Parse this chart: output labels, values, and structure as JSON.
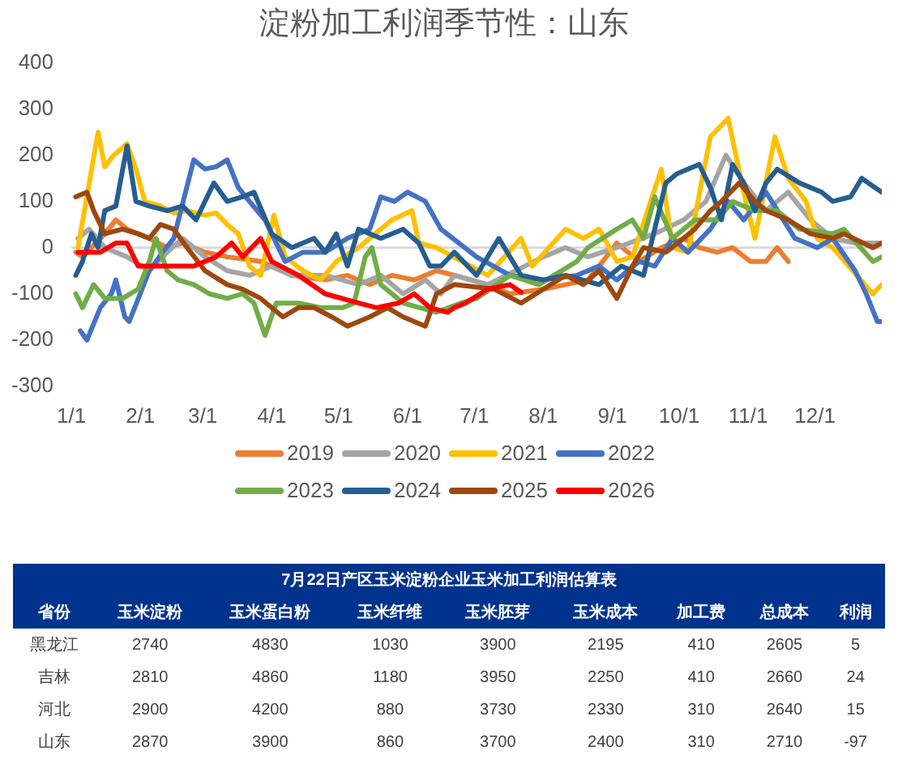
{
  "chart_data": [
    {
      "type": "line",
      "title": "淀粉加工利润季节性：山东",
      "xlim": [
        "--01-01",
        "--12-31"
      ],
      "xticks": [
        {
          "value": "--01-01",
          "label": "1/1"
        },
        {
          "value": "--02-01",
          "label": "2/1"
        },
        {
          "value": "--03-01",
          "label": "3/1"
        },
        {
          "value": "--04-01",
          "label": "4/1"
        },
        {
          "value": "--05-01",
          "label": "5/1"
        },
        {
          "value": "--06-01",
          "label": "6/1"
        },
        {
          "value": "--07-01",
          "label": "7/1"
        },
        {
          "value": "--08-01",
          "label": "8/1"
        },
        {
          "value": "--09-01",
          "label": "9/1"
        },
        {
          "value": "--10-01",
          "label": "10/1"
        },
        {
          "value": "--11-01",
          "label": "11/1"
        },
        {
          "value": "--12-01",
          "label": "12/1"
        }
      ],
      "ylim": [
        -300,
        400
      ],
      "yticks": [
        -300,
        -200,
        -100,
        0,
        100,
        200,
        300,
        400
      ],
      "legend": "bottom",
      "ref_lines": [
        {
          "axis": "y",
          "value": 0,
          "label": null,
          "color": "#d9d9d9"
        }
      ],
      "series": [
        {
          "name": "2019",
          "color": "#ed7d31",
          "x": [
            "--01-03",
            "--01-06",
            "--01-16",
            "--01-21",
            "--01-26",
            "--02-05",
            "--02-13",
            "--02-20",
            "--03-02",
            "--03-12",
            "--03-27",
            "--04-10",
            "--04-25",
            "--05-05",
            "--05-15",
            "--05-25",
            "--06-04",
            "--06-14",
            "--06-22",
            "--07-07",
            "--07-17",
            "--08-01",
            "--08-11",
            "--08-21",
            "--08-26",
            "--09-03",
            "--09-13",
            "--09-23",
            "--10-03",
            "--10-10",
            "--10-18",
            "--10-25",
            "--11-02",
            "--11-09",
            "--11-14",
            "--11-19"
          ],
          "values": [
            -10,
            -20,
            30,
            60,
            40,
            20,
            0,
            10,
            -10,
            -20,
            -30,
            -60,
            -70,
            -60,
            -80,
            -60,
            -70,
            -50,
            -60,
            -80,
            -100,
            -90,
            -80,
            -70,
            -40,
            10,
            -30,
            0,
            20,
            0,
            -10,
            0,
            -30,
            -30,
            0,
            -30
          ]
        },
        {
          "name": "2020",
          "color": "#a5a5a5",
          "x": [
            "--01-04",
            "--01-09",
            "--01-16",
            "--01-26",
            "--02-05",
            "--02-13",
            "--02-20",
            "--03-02",
            "--03-12",
            "--03-22",
            "--04-01",
            "--04-10",
            "--04-25",
            "--05-10",
            "--05-20",
            "--05-30",
            "--06-09",
            "--06-16",
            "--06-22",
            "--07-07",
            "--08-01",
            "--08-11",
            "--08-21",
            "--09-03",
            "--09-20",
            "--10-03",
            "--10-13",
            "--10-22",
            "--10-30",
            "--11-09",
            "--11-19",
            "--11-29",
            "--12-09",
            "--12-19",
            "--12-31"
          ],
          "values": [
            20,
            40,
            0,
            -20,
            -50,
            -10,
            20,
            -20,
            -50,
            -60,
            -40,
            -60,
            -60,
            -80,
            -60,
            -100,
            -70,
            -100,
            -60,
            -80,
            -20,
            0,
            -20,
            0,
            30,
            60,
            100,
            200,
            140,
            80,
            120,
            60,
            20,
            10,
            10
          ]
        },
        {
          "name": "2021",
          "color": "#ffc000",
          "x": [
            "--01-04",
            "--01-13",
            "--01-16",
            "--01-20",
            "--01-26",
            "--01-30",
            "--02-03",
            "--02-10",
            "--02-16",
            "--02-22",
            "--03-02",
            "--03-07",
            "--03-12",
            "--03-17",
            "--03-22",
            "--03-27",
            "--04-02",
            "--04-07",
            "--04-15",
            "--04-23",
            "--04-30",
            "--05-10",
            "--05-20",
            "--05-25",
            "--06-03",
            "--06-06",
            "--06-14",
            "--07-07",
            "--07-22",
            "--07-27",
            "--08-11",
            "--08-19",
            "--08-26",
            "--09-03",
            "--09-10",
            "--09-23",
            "--09-28",
            "--10-05",
            "--10-15",
            "--10-23",
            "--10-30",
            "--11-04",
            "--11-13",
            "--11-19",
            "--11-27",
            "--12-02",
            "--12-09",
            "--12-27",
            "--12-31"
          ],
          "values": [
            0,
            250,
            175,
            200,
            225,
            170,
            100,
            90,
            75,
            80,
            70,
            75,
            50,
            30,
            -40,
            -60,
            70,
            -20,
            -50,
            -70,
            -30,
            0,
            40,
            60,
            80,
            10,
            0,
            -60,
            20,
            -40,
            40,
            20,
            40,
            -30,
            -20,
            170,
            0,
            -10,
            240,
            280,
            120,
            20,
            240,
            150,
            100,
            20,
            0,
            -100,
            -80
          ]
        },
        {
          "name": "2022",
          "color": "#4472c4",
          "x": [
            "--01-05",
            "--01-08",
            "--01-14",
            "--01-19",
            "--01-21",
            "--01-25",
            "--01-27",
            "--02-05",
            "--02-11",
            "--02-16",
            "--02-25",
            "--03-02",
            "--03-07",
            "--03-12",
            "--03-17",
            "--03-22",
            "--03-29",
            "--04-07",
            "--04-15",
            "--04-25",
            "--05-05",
            "--05-15",
            "--05-20",
            "--05-26",
            "--06-01",
            "--06-09",
            "--06-16",
            "--07-02",
            "--07-17",
            "--08-01",
            "--08-16",
            "--08-26",
            "--09-03",
            "--09-13",
            "--09-20",
            "--09-28",
            "--10-05",
            "--10-15",
            "--10-23",
            "--10-30",
            "--11-09",
            "--11-22",
            "--12-02",
            "--12-09",
            "--12-19",
            "--12-24",
            "--12-29",
            "--12-31"
          ],
          "values": [
            -180,
            -200,
            -130,
            -100,
            -70,
            -150,
            -160,
            -50,
            -10,
            20,
            190,
            170,
            175,
            190,
            130,
            100,
            60,
            -30,
            -10,
            -10,
            20,
            40,
            110,
            100,
            120,
            100,
            40,
            -20,
            -60,
            -70,
            -60,
            -40,
            -70,
            -30,
            -40,
            20,
            -10,
            40,
            100,
            60,
            120,
            20,
            0,
            20,
            -50,
            -100,
            -160,
            -160
          ]
        },
        {
          "name": "2023",
          "color": "#70ad47",
          "x": [
            "--01-03",
            "--01-06",
            "--01-11",
            "--01-16",
            "--01-24",
            "--01-31",
            "--02-05",
            "--02-08",
            "--02-13",
            "--02-18",
            "--02-25",
            "--03-04",
            "--03-12",
            "--03-19",
            "--03-24",
            "--03-29",
            "--04-03",
            "--04-13",
            "--04-23",
            "--05-03",
            "--05-08",
            "--05-13",
            "--05-16",
            "--05-20",
            "--05-30",
            "--06-14",
            "--06-25",
            "--07-02",
            "--07-17",
            "--07-30",
            "--08-16",
            "--08-21",
            "--09-03",
            "--09-10",
            "--09-15",
            "--09-20",
            "--09-28",
            "--10-08",
            "--10-18",
            "--10-25",
            "--11-04",
            "--11-14",
            "--11-24",
            "--12-09",
            "--12-14",
            "--12-27",
            "--12-31"
          ],
          "values": [
            -100,
            -130,
            -80,
            -110,
            -110,
            -90,
            -30,
            20,
            -50,
            -70,
            -80,
            -100,
            -110,
            -100,
            -120,
            -190,
            -120,
            -120,
            -130,
            -130,
            -120,
            -20,
            0,
            -80,
            -120,
            -140,
            -120,
            -110,
            -60,
            -80,
            -30,
            0,
            40,
            60,
            20,
            110,
            20,
            60,
            60,
            100,
            80,
            80,
            40,
            30,
            40,
            -30,
            -20
          ]
        },
        {
          "name": "2024",
          "color": "#255e91",
          "x": [
            "--01-03",
            "--01-06",
            "--01-10",
            "--01-13",
            "--01-16",
            "--01-21",
            "--01-26",
            "--01-30",
            "--02-05",
            "--02-13",
            "--02-20",
            "--02-26",
            "--03-06",
            "--03-12",
            "--03-19",
            "--03-24",
            "--04-01",
            "--04-10",
            "--04-20",
            "--04-25",
            "--04-30",
            "--05-05",
            "--05-10",
            "--05-20",
            "--05-30",
            "--06-06",
            "--06-11",
            "--06-16",
            "--06-22",
            "--07-02",
            "--07-12",
            "--07-22",
            "--08-01",
            "--08-11",
            "--08-26",
            "--09-05",
            "--09-15",
            "--09-25",
            "--09-30",
            "--10-10",
            "--10-15",
            "--10-20",
            "--10-25",
            "--10-30",
            "--11-04",
            "--11-09",
            "--11-14",
            "--11-24",
            "--12-04",
            "--12-09",
            "--12-17",
            "--12-22",
            "--12-31"
          ],
          "values": [
            -60,
            -30,
            30,
            0,
            80,
            90,
            220,
            100,
            90,
            80,
            90,
            60,
            140,
            100,
            110,
            120,
            30,
            0,
            20,
            -10,
            30,
            -40,
            40,
            20,
            40,
            10,
            -40,
            -40,
            -10,
            -60,
            20,
            -60,
            -70,
            -60,
            -80,
            -40,
            -60,
            140,
            160,
            180,
            130,
            60,
            180,
            140,
            80,
            140,
            170,
            140,
            120,
            100,
            110,
            150,
            120
          ]
        },
        {
          "name": "2025",
          "color": "#9e480e",
          "x": [
            "--01-03",
            "--01-08",
            "--01-11",
            "--01-16",
            "--01-24",
            "--01-31",
            "--02-05",
            "--02-10",
            "--02-16",
            "--02-22",
            "--03-02",
            "--03-12",
            "--03-19",
            "--03-27",
            "--04-06",
            "--04-13",
            "--04-20",
            "--04-28",
            "--05-05",
            "--05-15",
            "--05-23",
            "--05-30",
            "--06-09",
            "--06-14",
            "--06-22",
            "--07-10",
            "--07-22",
            "--08-01",
            "--08-11",
            "--08-19",
            "--08-26",
            "--09-03",
            "--09-10",
            "--09-15",
            "--09-25",
            "--10-03",
            "--10-08",
            "--10-15",
            "--10-20",
            "--10-28",
            "--11-04",
            "--11-09",
            "--11-19",
            "--11-29",
            "--12-09",
            "--12-14",
            "--12-27",
            "--12-31"
          ],
          "values": [
            110,
            120,
            80,
            30,
            40,
            30,
            20,
            50,
            40,
            0,
            -50,
            -80,
            -90,
            -110,
            -150,
            -130,
            -130,
            -150,
            -170,
            -150,
            -130,
            -150,
            -170,
            -100,
            -80,
            -90,
            -120,
            -90,
            -60,
            -80,
            -50,
            -110,
            -40,
            0,
            -10,
            20,
            40,
            80,
            100,
            140,
            100,
            80,
            60,
            30,
            20,
            30,
            0,
            10
          ]
        },
        {
          "name": "2026",
          "color": "#ff0000",
          "x": [
            "--01-04",
            "--01-14",
            "--01-21",
            "--01-26",
            "--01-31",
            "--02-10",
            "--02-25",
            "--03-07",
            "--03-14",
            "--03-19",
            "--03-27",
            "--04-01",
            "--04-13",
            "--04-25",
            "--05-10",
            "--05-18",
            "--05-28",
            "--06-04",
            "--06-11",
            "--06-19",
            "--06-22",
            "--06-27",
            "--07-07",
            "--07-17",
            "--07-22"
          ],
          "values": [
            -10,
            -10,
            10,
            10,
            -40,
            -40,
            -40,
            -20,
            10,
            -20,
            20,
            -30,
            -60,
            -100,
            -120,
            -130,
            -120,
            -100,
            -130,
            -140,
            -130,
            -120,
            -90,
            -80,
            -97
          ]
        }
      ]
    },
    {
      "type": "heatmap",
      "title": "7月22日产区玉米淀粉企业玉米加工利润估算表",
      "ylabel": "省份",
      "data_labels": true,
      "categories": [
        "玉米淀粉",
        "玉米蛋白粉",
        "玉米纤维",
        "玉米胚芽",
        "玉米成本",
        "加工费",
        "总成本",
        "利润"
      ],
      "y_categories": [
        "黑龙江",
        "吉林",
        "河北",
        "山东"
      ],
      "cells": [
        [
          2740,
          4830,
          1030,
          3900,
          2195,
          410,
          2605,
          5
        ],
        [
          2810,
          4860,
          1180,
          3950,
          2250,
          410,
          2660,
          24
        ],
        [
          2900,
          4200,
          880,
          3730,
          2330,
          310,
          2640,
          15
        ],
        [
          2870,
          3900,
          860,
          3700,
          2400,
          310,
          2710,
          -97
        ]
      ]
    }
  ]
}
